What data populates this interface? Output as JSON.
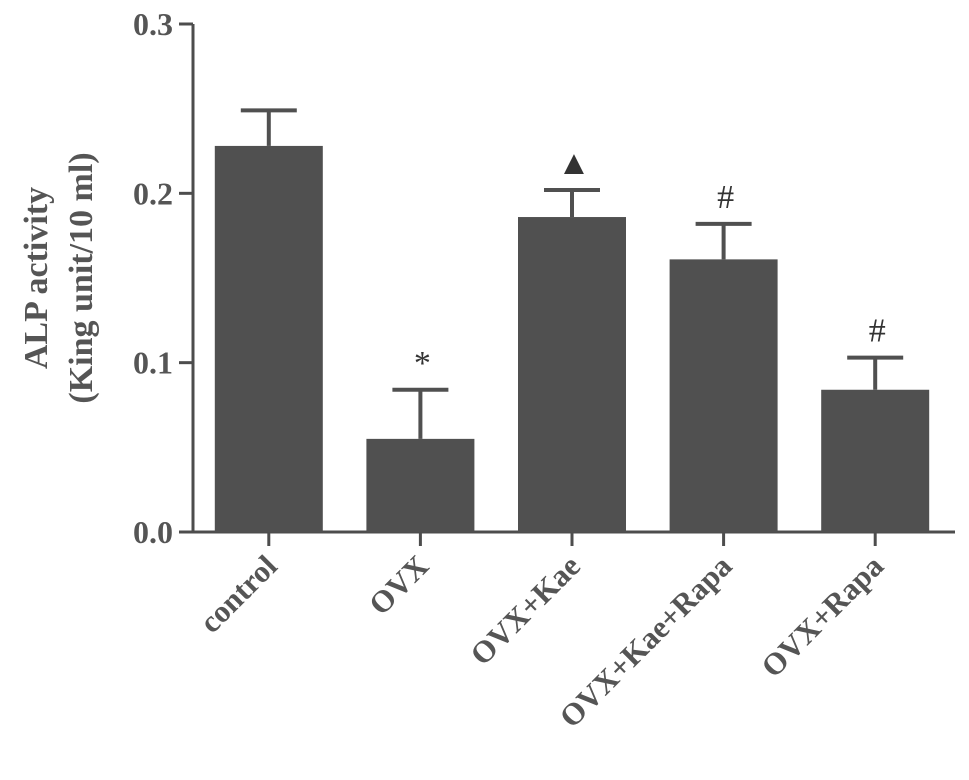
{
  "chart_data": {
    "type": "bar",
    "categories": [
      "control",
      "OVX",
      "OVX+Kae",
      "OVX+Kae+Rapa",
      "OVX+Rapa"
    ],
    "values": [
      0.228,
      0.055,
      0.186,
      0.161,
      0.084
    ],
    "errors": [
      0.021,
      0.029,
      0.016,
      0.021,
      0.019
    ],
    "annotations": [
      "",
      "*",
      "▲",
      "#",
      "#"
    ],
    "ylabel_lines": [
      "ALP activity",
      "(King unit/10 ml)"
    ],
    "ylim": [
      0,
      0.3
    ],
    "yticks": [
      "0.0",
      "0.1",
      "0.2",
      "0.3"
    ],
    "bar_color": "#505050",
    "grid": false
  }
}
